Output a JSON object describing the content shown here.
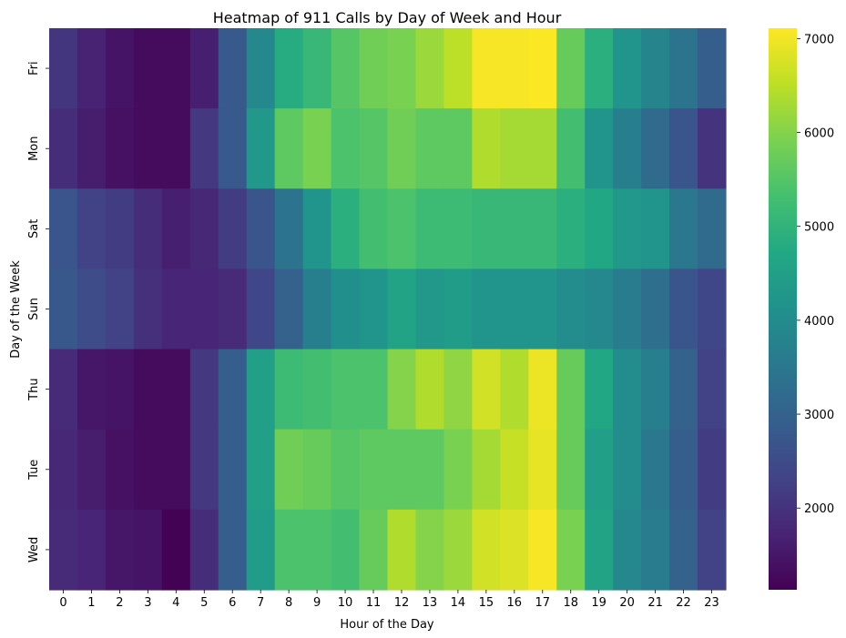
{
  "chart_data": {
    "type": "heatmap",
    "title": "Heatmap of 911 Calls by Day of Week and Hour",
    "xlabel": "Hour of the Day",
    "ylabel": "Day of the Week",
    "x_categories": [
      "0",
      "1",
      "2",
      "3",
      "4",
      "5",
      "6",
      "7",
      "8",
      "9",
      "10",
      "11",
      "12",
      "13",
      "14",
      "15",
      "16",
      "17",
      "18",
      "19",
      "20",
      "21",
      "22",
      "23"
    ],
    "y_categories": [
      "Fri",
      "Mon",
      "Sat",
      "Sun",
      "Thu",
      "Tue",
      "Wed"
    ],
    "values": [
      [
        2050,
        1700,
        1450,
        1300,
        1300,
        1650,
        2800,
        3900,
        4800,
        5100,
        5500,
        5800,
        5900,
        6200,
        6500,
        7050,
        7050,
        7100,
        5700,
        4900,
        4200,
        3800,
        3400,
        2900
      ],
      [
        1900,
        1600,
        1400,
        1300,
        1300,
        2100,
        2800,
        4300,
        5600,
        5900,
        5400,
        5500,
        5800,
        5600,
        5600,
        6400,
        6300,
        6300,
        5300,
        4200,
        3700,
        3200,
        2700,
        2000
      ],
      [
        2700,
        2300,
        2200,
        1900,
        1650,
        1800,
        2200,
        2700,
        3400,
        4200,
        4900,
        5300,
        5400,
        5200,
        5200,
        5100,
        5100,
        5100,
        4900,
        4700,
        4300,
        4200,
        3500,
        3200
      ],
      [
        2750,
        2500,
        2300,
        1950,
        1750,
        1750,
        1850,
        2400,
        3000,
        3700,
        4100,
        4200,
        4600,
        4300,
        4400,
        4200,
        4200,
        4200,
        4000,
        3900,
        3600,
        3300,
        2700,
        2400
      ],
      [
        1850,
        1500,
        1450,
        1300,
        1300,
        2100,
        2900,
        4500,
        5200,
        5300,
        5400,
        5400,
        6000,
        6400,
        6100,
        6700,
        6400,
        6950,
        5700,
        4700,
        4000,
        3700,
        3000,
        2300
      ],
      [
        1800,
        1600,
        1400,
        1300,
        1300,
        2100,
        2900,
        4500,
        5800,
        5700,
        5500,
        5600,
        5600,
        5600,
        5900,
        6300,
        6600,
        6900,
        5700,
        4500,
        4000,
        3500,
        2900,
        2200
      ],
      [
        1850,
        1750,
        1500,
        1450,
        1150,
        1900,
        2900,
        4400,
        5400,
        5400,
        5300,
        5700,
        6400,
        6000,
        6200,
        6700,
        6800,
        7050,
        5900,
        4600,
        3900,
        3600,
        3000,
        2300
      ]
    ],
    "colorbar": {
      "min": 1130,
      "max": 7110,
      "ticks": [
        "2000",
        "3000",
        "4000",
        "5000",
        "6000",
        "7000"
      ],
      "colormap": "viridis"
    }
  }
}
